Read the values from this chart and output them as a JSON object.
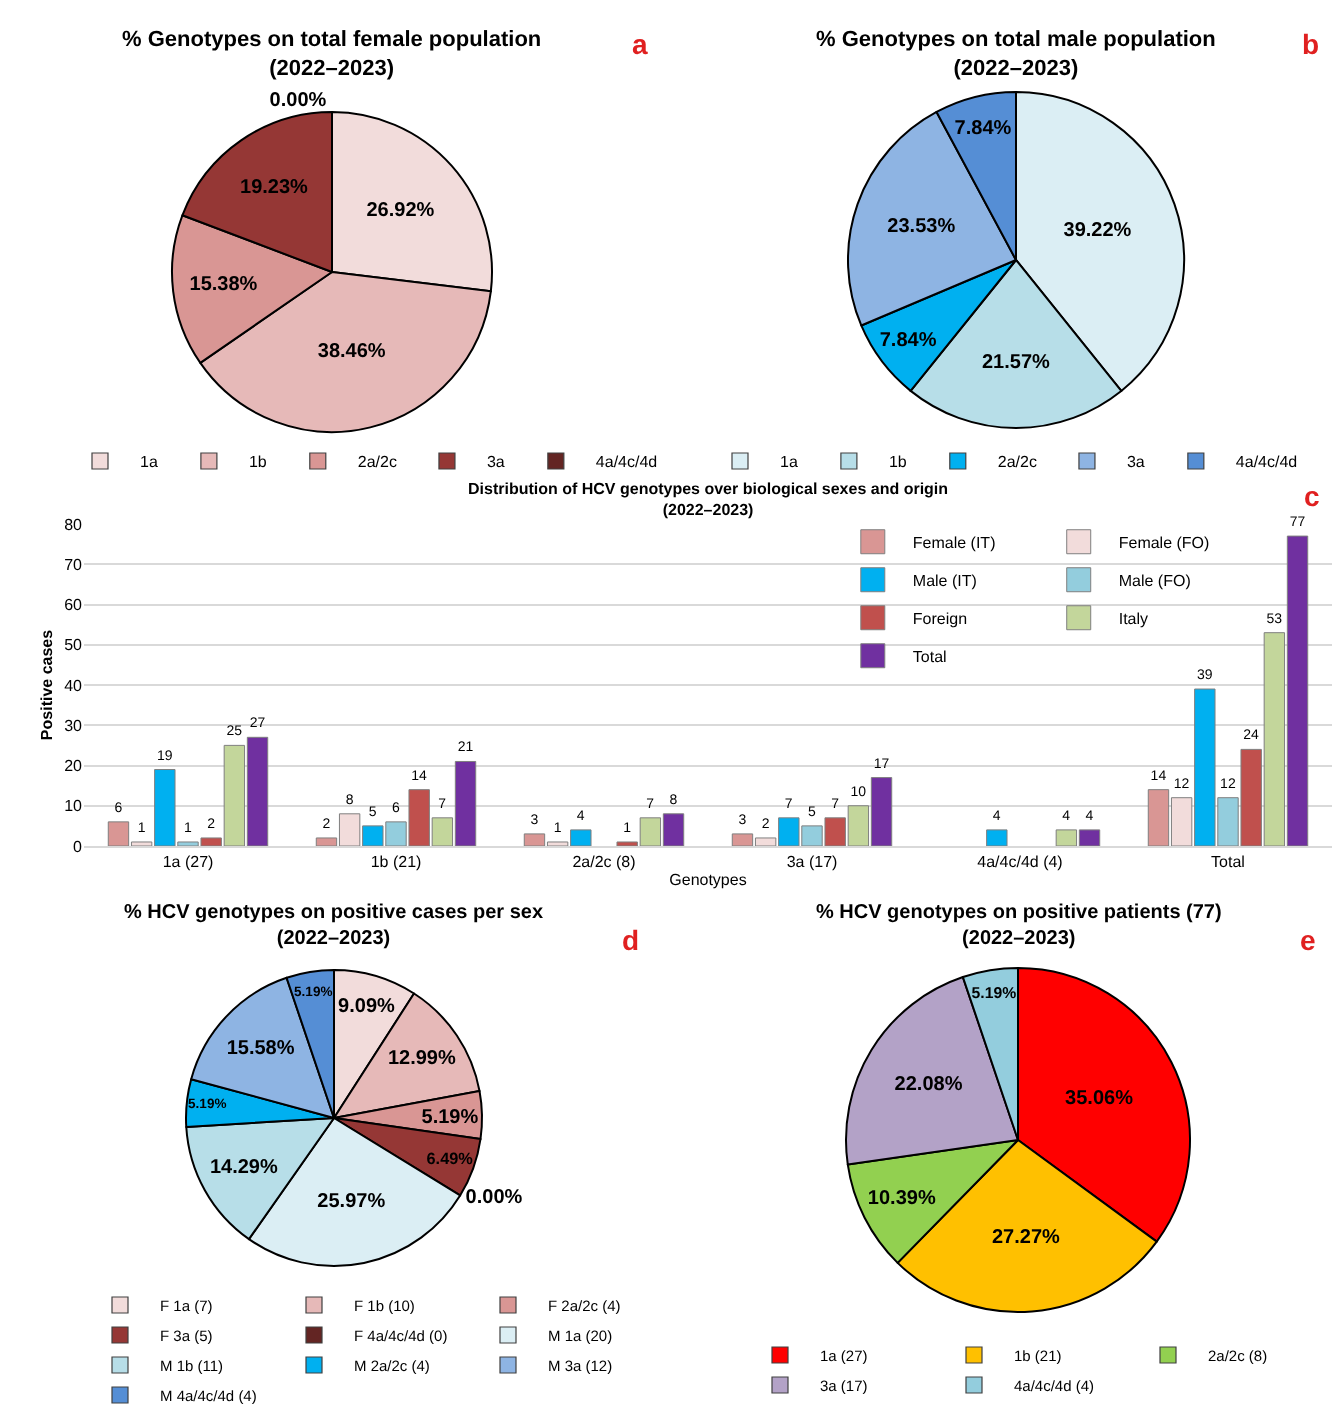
{
  "chart_data": [
    {
      "type": "pie",
      "title": "% Genotypes on total female population\n(2022–2023)",
      "categories": [
        "1a",
        "1b",
        "2a/2c",
        "3a",
        "4a/4c/4d"
      ],
      "values": [
        26.92,
        38.46,
        15.38,
        19.23,
        0.0
      ],
      "colors": [
        "#f2dcdb",
        "#e6b9b8",
        "#d99694",
        "#953735",
        "#632523"
      ],
      "value_labels": [
        "26.92%",
        "38.46%",
        "15.38%",
        "19.23%",
        "0.00%"
      ],
      "legend": "bottom",
      "annotations": [
        "a"
      ]
    },
    {
      "type": "pie",
      "title": "% Genotypes on total male population\n(2022–2023)",
      "categories": [
        "1a",
        "1b",
        "2a/2c",
        "3a",
        "4a/4c/4d"
      ],
      "values": [
        39.22,
        21.57,
        7.84,
        23.53,
        7.84
      ],
      "colors": [
        "#dbeef4",
        "#b7dee8",
        "#00b0f0",
        "#8eb4e3",
        "#558ed5"
      ],
      "value_labels": [
        "39.22%",
        "21.57%",
        "7.84%",
        "23.53%",
        "7.84%"
      ],
      "legend": "bottom",
      "annotations": [
        "b"
      ]
    },
    {
      "type": "bar",
      "title": "Distribution of HCV genotypes over biological sexes and origin\n(2022–2023)",
      "xlabel": "Genotypes",
      "ylabel": "Positive cases",
      "categories": [
        "1a (27)",
        "1b (21)",
        "2a/2c (8)",
        "3a (17)",
        "4a/4c/4d (4)",
        "Total"
      ],
      "series": [
        {
          "name": "Female (IT)",
          "color": "#d99694",
          "values": [
            6,
            2,
            3,
            3,
            null,
            14
          ]
        },
        {
          "name": "Female (FO)",
          "color": "#f2dcdb",
          "values": [
            1,
            8,
            1,
            2,
            null,
            12
          ]
        },
        {
          "name": "Male (IT)",
          "color": "#00b0f0",
          "values": [
            19,
            5,
            4,
            7,
            4,
            39
          ]
        },
        {
          "name": "Male (FO)",
          "color": "#93cddd",
          "values": [
            1,
            6,
            null,
            5,
            null,
            12
          ]
        },
        {
          "name": "Foreign",
          "color": "#c0504d",
          "values": [
            2,
            14,
            1,
            7,
            null,
            24
          ]
        },
        {
          "name": "Italy",
          "color": "#c3d69b",
          "values": [
            25,
            7,
            7,
            10,
            4,
            53
          ]
        },
        {
          "name": "Total",
          "color": "#7030a0",
          "values": [
            27,
            21,
            8,
            17,
            4,
            77
          ]
        }
      ],
      "ylim": [
        0,
        80
      ],
      "yticks": [
        0,
        10,
        20,
        30,
        40,
        50,
        60,
        70,
        80
      ],
      "grid": "y",
      "legend": "top right",
      "data_labels": true,
      "annotations": [
        "c"
      ]
    },
    {
      "type": "pie",
      "title": "% HCV genotypes on positive cases per sex\n(2022–2023)",
      "categories": [
        "F 1a (7)",
        "F 1b (10)",
        "F 2a/2c (4)",
        "F 3a (5)",
        "F 4a/4c/4d (0)",
        "M 1a (20)",
        "M 1b (11)",
        "M 2a/2c (4)",
        "M 3a (12)",
        "M 4a/4c/4d (4)"
      ],
      "values": [
        9.09,
        12.99,
        5.19,
        6.49,
        0.0,
        25.97,
        14.29,
        5.19,
        15.58,
        5.19
      ],
      "colors": [
        "#f2dcdb",
        "#e6b9b8",
        "#d99694",
        "#953735",
        "#632523",
        "#dbeef4",
        "#b7dee8",
        "#00b0f0",
        "#8eb4e3",
        "#558ed5"
      ],
      "value_labels": [
        "9.09%",
        "12.99%",
        "5.19%",
        "6.49%",
        "0.00%",
        "25.97%",
        "14.29%",
        "5.19%",
        "15.58%",
        "5.19%"
      ],
      "legend": "bottom",
      "annotations": [
        "d"
      ]
    },
    {
      "type": "pie",
      "title": "% HCV genotypes on positive patients (77)\n(2022–2023)",
      "categories": [
        "1a (27)",
        "1b (21)",
        "2a/2c (8)",
        "3a (17)",
        "4a/4c/4d (4)"
      ],
      "values": [
        35.06,
        27.27,
        10.39,
        22.08,
        5.19
      ],
      "colors": [
        "#ff0000",
        "#ffc000",
        "#92d050",
        "#b3a2c7",
        "#93cddd"
      ],
      "value_labels": [
        "35.06%",
        "27.27%",
        "10.39%",
        "22.08%",
        "5.19%"
      ],
      "legend": "bottom",
      "annotations": [
        "e"
      ]
    }
  ]
}
